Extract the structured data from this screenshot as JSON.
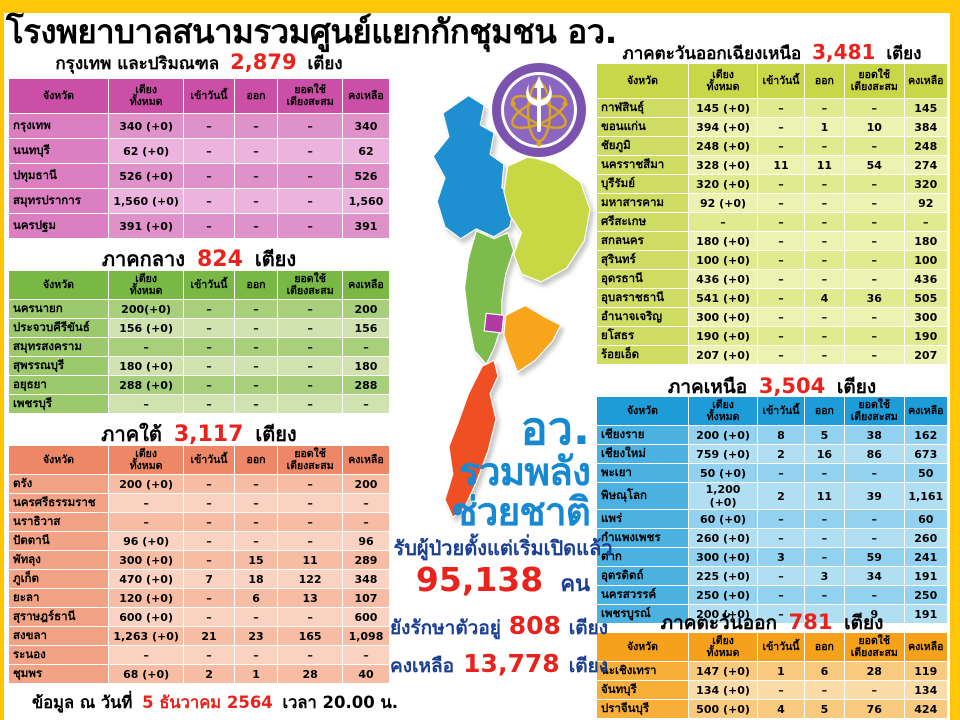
{
  "title": "โรงพยาบาลสนามรวมศูนย์แยกกักชุมชน อว.",
  "columns": [
    "จังหวัด",
    "เตียง\nทั้งหมด",
    "เข้าวันนี้",
    "ออก",
    "ยอดใช้\nเตียงสะสม",
    "คงเหลือ"
  ],
  "regions": [
    {
      "name": "กรุงเทพ และปริมณฑล",
      "beds": "2,879",
      "unit": "เตียง",
      "rows": [
        [
          "กรุงเทพ",
          "340 (+0)",
          "–",
          "–",
          "–",
          "340"
        ],
        [
          "นนทบุรี",
          "62 (+0)",
          "–",
          "–",
          "–",
          "62"
        ],
        [
          "ปทุมธานี",
          "526 (+0)",
          "–",
          "–",
          "–",
          "526"
        ],
        [
          "สมุทรปราการ",
          "1,560 (+0)",
          "–",
          "–",
          "–",
          "1,560"
        ],
        [
          "นครปฐม",
          "391 (+0)",
          "–",
          "–",
          "–",
          "391"
        ]
      ]
    },
    {
      "name": "ภาคกลาง",
      "beds": "824",
      "unit": "เตียง",
      "rows": [
        [
          "นครนายก",
          "200(+0)",
          "–",
          "–",
          "–",
          "200"
        ],
        [
          "ประจวบคีรีขันธ์",
          "156 (+0)",
          "–",
          "–",
          "–",
          "156"
        ],
        [
          "สมุทรสงคราม",
          "–",
          "–",
          "–",
          "–",
          "–"
        ],
        [
          "สุพรรณบุรี",
          "180 (+0)",
          "–",
          "–",
          "–",
          "180"
        ],
        [
          "อยุธยา",
          "288 (+0)",
          "–",
          "–",
          "–",
          "288"
        ],
        [
          "เพชรบุรี",
          "–",
          "–",
          "–",
          "–",
          "–"
        ]
      ]
    },
    {
      "name": "ภาคใต้",
      "beds": "3,117",
      "unit": "เตียง",
      "rows": [
        [
          "ตรัง",
          "200 (+0)",
          "–",
          "–",
          "–",
          "200"
        ],
        [
          "นครศรีธรรมราช",
          "–",
          "–",
          "–",
          "–",
          "–"
        ],
        [
          "นราธิวาส",
          "–",
          "–",
          "–",
          "–",
          "–"
        ],
        [
          "ปัตตานี",
          "96 (+0)",
          "–",
          "–",
          "–",
          "96"
        ],
        [
          "พัทลุง",
          "300 (+0)",
          "–",
          "15",
          "11",
          "289"
        ],
        [
          "ภูเก็ต",
          "470 (+0)",
          "7",
          "18",
          "122",
          "348"
        ],
        [
          "ยะลา",
          "120 (+0)",
          "–",
          "6",
          "13",
          "107"
        ],
        [
          "สุราษฎร์ธานี",
          "600 (+0)",
          "–",
          "–",
          "–",
          "600"
        ],
        [
          "สงขลา",
          "1,263 (+0)",
          "21",
          "23",
          "165",
          "1,098"
        ],
        [
          "ระนอง",
          "–",
          "–",
          "–",
          "–",
          "–"
        ],
        [
          "ชุมพร",
          "68 (+0)",
          "2",
          "1",
          "28",
          "40"
        ]
      ]
    },
    {
      "name": "ภาคตะวันออกเฉียงเหนือ",
      "beds": "3,481",
      "unit": "เตียง",
      "rows": [
        [
          "กาฬสินธุ์",
          "145 (+0)",
          "–",
          "–",
          "–",
          "145"
        ],
        [
          "ขอนแก่น",
          "394 (+0)",
          "–",
          "1",
          "10",
          "384"
        ],
        [
          "ชัยภูมิ",
          "248 (+0)",
          "–",
          "–",
          "–",
          "248"
        ],
        [
          "นครราชสีมา",
          "328 (+0)",
          "11",
          "11",
          "54",
          "274"
        ],
        [
          "บุรีรัมย์",
          "320 (+0)",
          "–",
          "–",
          "–",
          "320"
        ],
        [
          "มหาสารคาม",
          "92 (+0)",
          "–",
          "–",
          "–",
          "92"
        ],
        [
          "ศรีสะเกษ",
          "–",
          "–",
          "–",
          "–",
          "–"
        ],
        [
          "สกลนคร",
          "180 (+0)",
          "–",
          "–",
          "–",
          "180"
        ],
        [
          "สุรินทร์",
          "100 (+0)",
          "–",
          "–",
          "–",
          "100"
        ],
        [
          "อุดรธานี",
          "436 (+0)",
          "–",
          "–",
          "–",
          "436"
        ],
        [
          "อุบลราชธานี",
          "541 (+0)",
          "–",
          "4",
          "36",
          "505"
        ],
        [
          "อำนาจเจริญ",
          "300 (+0)",
          "–",
          "–",
          "–",
          "300"
        ],
        [
          "ยโสธร",
          "190 (+0)",
          "–",
          "–",
          "–",
          "190"
        ],
        [
          "ร้อยเอ็ด",
          "207 (+0)",
          "–",
          "–",
          "–",
          "207"
        ]
      ]
    },
    {
      "name": "ภาคเหนือ",
      "beds": "3,504",
      "unit": "เตียง",
      "rows": [
        [
          "เชียงราย",
          "200 (+0)",
          "8",
          "5",
          "38",
          "162"
        ],
        [
          "เชียงใหม่",
          "759 (+0)",
          "2",
          "16",
          "86",
          "673"
        ],
        [
          "พะเยา",
          "50 (+0)",
          "–",
          "–",
          "–",
          "50"
        ],
        [
          "พิษณุโลก",
          "1,200 (+0)",
          "2",
          "11",
          "39",
          "1,161"
        ],
        [
          "แพร่",
          "60 (+0)",
          "–",
          "–",
          "–",
          "60"
        ],
        [
          "กำแพงเพชร",
          "260 (+0)",
          "–",
          "–",
          "–",
          "260"
        ],
        [
          "ตาก",
          "300 (+0)",
          "3",
          "–",
          "59",
          "241"
        ],
        [
          "อุตรดิตถ์",
          "225 (+0)",
          "–",
          "3",
          "34",
          "191"
        ],
        [
          "นครสวรรค์",
          "250 (+0)",
          "–",
          "–",
          "–",
          "250"
        ],
        [
          "เพชรบูรณ์",
          "200 (+0)",
          "–",
          "–",
          "9",
          "191"
        ]
      ]
    },
    {
      "name": "ภาคตะวันออก",
      "beds": "781",
      "unit": "เตียง",
      "rows": [
        [
          "ฉะเชิงเทรา",
          "147 (+0)",
          "1",
          "6",
          "28",
          "119"
        ],
        [
          "จันทบุรี",
          "134 (+0)",
          "–",
          "–",
          "–",
          "134"
        ],
        [
          "ปราจีนบุรี",
          "500 (+0)",
          "4",
          "5",
          "76",
          "424"
        ]
      ]
    }
  ],
  "center": {
    "slogan": [
      "อว.",
      "รวมพลัง",
      "ช่วยชาติ"
    ],
    "patients_label": "รับผู้ป่วยตั้งแต่เริ่มเปิดแล้ว",
    "patients_value": "95,138",
    "patients_unit": "คน",
    "in_care_label": "ยังรักษาตัวอยู่",
    "in_care_value": "808",
    "in_care_unit": "เตียง",
    "remaining_label": "คงเหลือ",
    "remaining_value": "13,778",
    "remaining_unit": "เตียง"
  },
  "footer": {
    "prefix": "ข้อมูล ณ วันที่",
    "date": "5 ธันวาคม 2564",
    "suffix": "เวลา  20.00 น."
  },
  "map": {
    "region_colors": {
      "north": "#1E8FD0",
      "northeast": "#C8D844",
      "central": "#7CBB4C",
      "bangkok": "#B13AA5",
      "east": "#F9A51B",
      "south": "#F04E23"
    }
  },
  "colors": {
    "banner_yellow": "#FFC60A",
    "accent_red": "#E8231D",
    "slogan_blue": "#1789D2",
    "stat_navy": "#1B3F92",
    "table_pink": "#CC4FA7",
    "table_green": "#79B845",
    "table_salmon": "#EE8765",
    "table_lime": "#C7D747",
    "table_blue": "#1E9CD8",
    "table_orange": "#F5A11C"
  }
}
